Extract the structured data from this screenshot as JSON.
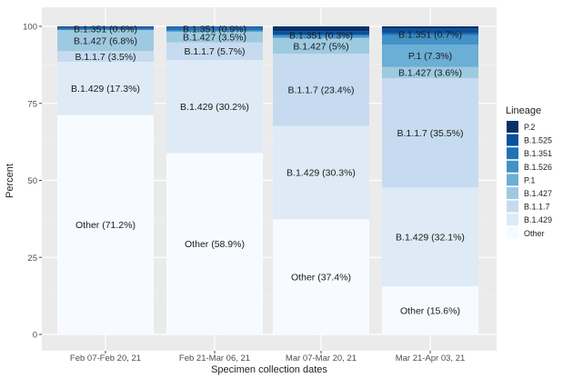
{
  "chart_data": {
    "type": "bar",
    "stacked": true,
    "categories": [
      "Feb 07-Feb 20, 21",
      "Feb 21-Mar 06, 21",
      "Mar 07-Mar 20, 21",
      "Mar 21-Apr 03, 21"
    ],
    "xlabel": "Specimen collection dates",
    "ylabel": "Percent",
    "ylim": [
      0,
      100
    ],
    "yticks": [
      0,
      25,
      50,
      75,
      100
    ],
    "grid": true,
    "legend": {
      "title": "Lineage",
      "placement": "right",
      "entries": [
        "P.2",
        "B.1.525",
        "B.1.351",
        "B.1.526",
        "P.1",
        "B.1.427",
        "B.1.1.7",
        "B.1.429",
        "Other"
      ]
    },
    "colors": {
      "P.2": "#08306b",
      "B.1.525": "#08519c",
      "B.1.351": "#2171b5",
      "B.1.526": "#4292c6",
      "P.1": "#6baed6",
      "B.1.427": "#9ecae1",
      "B.1.1.7": "#c6dbef",
      "B.1.429": "#deebf7",
      "Other": "#f7fbff"
    },
    "series": [
      {
        "name": "Other",
        "values": [
          71.2,
          58.9,
          37.4,
          15.6
        ]
      },
      {
        "name": "B.1.429",
        "values": [
          17.3,
          30.2,
          30.3,
          32.1
        ]
      },
      {
        "name": "B.1.1.7",
        "values": [
          3.5,
          5.7,
          23.4,
          35.5
        ]
      },
      {
        "name": "B.1.427",
        "values": [
          6.8,
          3.5,
          5.0,
          3.6
        ]
      },
      {
        "name": "P.1",
        "values": [
          0.0,
          0.0,
          0.3,
          7.3
        ]
      },
      {
        "name": "B.1.526",
        "values": [
          0.1,
          0.4,
          0.6,
          3.0
        ]
      },
      {
        "name": "B.1.351",
        "values": [
          0.6,
          0.9,
          0.3,
          0.7
        ]
      },
      {
        "name": "B.1.525",
        "values": [
          0.3,
          0.3,
          1.2,
          1.4
        ]
      },
      {
        "name": "P.2",
        "values": [
          0.2,
          0.1,
          1.5,
          0.8
        ]
      }
    ],
    "data_labels": [
      [
        "Other (71.2%)",
        "B.1.429 (17.3%)",
        "B.1.1.7 (3.5%)",
        "B.1.427 (6.8%)",
        "",
        "",
        "B.1.351 (0.6%)",
        "",
        ""
      ],
      [
        "Other (58.9%)",
        "B.1.429 (30.2%)",
        "B.1.1.7 (5.7%)",
        "B.1.427 (3.5%)",
        "",
        "",
        "B.1.351 (0.9%)",
        "",
        ""
      ],
      [
        "Other (37.4%)",
        "B.1.429 (30.3%)",
        "B.1.1.7 (23.4%)",
        "B.1.427 (5%)",
        "",
        "",
        "B.1.351 (0.3%)",
        "",
        ""
      ],
      [
        "Other (15.6%)",
        "B.1.429 (32.1%)",
        "B.1.1.7 (35.5%)",
        "B.1.427 (3.6%)",
        "P.1 (7.3%)",
        "",
        "B.1.351 (0.7%)",
        "",
        ""
      ]
    ]
  }
}
